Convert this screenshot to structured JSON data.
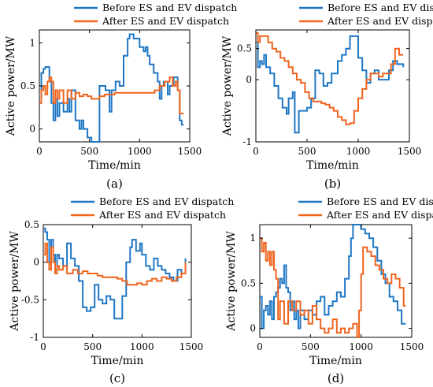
{
  "colors": {
    "before": "#1f77c4",
    "after": "#f0641e",
    "axis": "#000000"
  },
  "chart_data": [
    {
      "type": "line",
      "panel_label": "(a)",
      "xlabel": "Time/min",
      "ylabel": "Active power/MW",
      "xlim": [
        0,
        1500
      ],
      "ylim": [
        -0.15,
        1.15
      ],
      "xticks": [
        0,
        500,
        1000,
        1500
      ],
      "yticks": [
        0,
        0.5,
        1
      ],
      "grid": false,
      "legend_position": "top",
      "series": [
        {
          "name": "Before ES and EV dispatch",
          "color": "#1f77c4",
          "x": [
            0,
            20,
            40,
            60,
            80,
            100,
            120,
            140,
            160,
            180,
            200,
            240,
            280,
            300,
            320,
            360,
            400,
            420,
            440,
            480,
            520,
            560,
            600,
            660,
            700,
            720,
            760,
            800,
            840,
            880,
            900,
            920,
            940,
            960,
            1000,
            1040,
            1060,
            1080,
            1100,
            1140,
            1180,
            1200,
            1220,
            1240,
            1280,
            1300,
            1340,
            1380,
            1400,
            1420,
            1440
          ],
          "y": [
            0.3,
            0.65,
            0.7,
            0.72,
            0.72,
            0.55,
            0.3,
            0.1,
            0.35,
            0.15,
            0.3,
            0.2,
            0.35,
            0.2,
            0.45,
            0.1,
            0.0,
            0.1,
            0.0,
            -0.1,
            -0.15,
            -0.15,
            0.5,
            0.45,
            0.2,
            0.45,
            0.55,
            0.5,
            0.85,
            1.05,
            1.1,
            1.1,
            1.05,
            1.05,
            0.95,
            0.9,
            0.95,
            0.85,
            0.75,
            0.65,
            0.55,
            0.35,
            0.5,
            0.55,
            0.4,
            0.5,
            0.6,
            0.45,
            0.1,
            0.05,
            0.05
          ]
        },
        {
          "name": "After ES and EV dispatch",
          "color": "#f0641e",
          "x": [
            0,
            20,
            40,
            60,
            80,
            100,
            120,
            140,
            160,
            180,
            200,
            240,
            280,
            320,
            360,
            400,
            440,
            480,
            520,
            560,
            600,
            650,
            700,
            750,
            800,
            850,
            900,
            950,
            1000,
            1050,
            1100,
            1150,
            1200,
            1250,
            1300,
            1330,
            1360,
            1380,
            1400,
            1440
          ],
          "y": [
            0.3,
            0.45,
            0.5,
            0.4,
            0.55,
            0.6,
            0.55,
            0.3,
            0.45,
            0.35,
            0.45,
            0.3,
            0.45,
            0.35,
            0.42,
            0.38,
            0.4,
            0.38,
            0.35,
            0.35,
            0.38,
            0.4,
            0.4,
            0.42,
            0.42,
            0.42,
            0.42,
            0.42,
            0.42,
            0.42,
            0.42,
            0.45,
            0.5,
            0.55,
            0.6,
            0.5,
            0.55,
            0.45,
            0.18,
            0.18
          ]
        }
      ]
    },
    {
      "type": "line",
      "panel_label": "(b)",
      "xlabel": "Time/min",
      "ylabel": "Active power/MW",
      "xlim": [
        0,
        1500
      ],
      "ylim": [
        -1,
        0.8
      ],
      "xticks": [
        0,
        500,
        1000,
        1500
      ],
      "yticks": [
        -1,
        0,
        0.5
      ],
      "grid": false,
      "legend_position": "top",
      "series": [
        {
          "name": "Before ES and EV dispatch",
          "color": "#1f77c4",
          "x": [
            0,
            20,
            40,
            60,
            80,
            100,
            140,
            180,
            220,
            260,
            300,
            320,
            360,
            380,
            420,
            460,
            500,
            540,
            580,
            620,
            660,
            700,
            740,
            800,
            840,
            880,
            920,
            960,
            1000,
            1040,
            1080,
            1120,
            1160,
            1200,
            1240,
            1300,
            1340,
            1380,
            1440
          ],
          "y": [
            0.6,
            0.2,
            0.3,
            0.25,
            0.4,
            0.2,
            0.1,
            -0.1,
            -0.3,
            -0.45,
            -0.55,
            -0.3,
            -0.2,
            -0.85,
            -0.5,
            -0.5,
            -0.45,
            -0.3,
            0.15,
            0.1,
            -0.1,
            -0.05,
            0.1,
            0.3,
            0.4,
            0.5,
            0.7,
            0.7,
            0.35,
            0.15,
            -0.05,
            0.1,
            0.15,
            0.0,
            0.0,
            0.15,
            0.3,
            0.25,
            0.2
          ]
        },
        {
          "name": "After ES and EV dispatch",
          "color": "#f0641e",
          "x": [
            0,
            20,
            40,
            80,
            120,
            160,
            200,
            240,
            280,
            320,
            360,
            400,
            440,
            480,
            520,
            560,
            600,
            640,
            680,
            720,
            760,
            800,
            840,
            880,
            920,
            960,
            1000,
            1040,
            1080,
            1120,
            1160,
            1200,
            1240,
            1280,
            1320,
            1360,
            1400,
            1440
          ],
          "y": [
            0.75,
            0.6,
            0.7,
            0.7,
            0.6,
            0.5,
            0.45,
            0.35,
            0.3,
            0.2,
            0.1,
            0.0,
            -0.05,
            -0.2,
            -0.3,
            -0.35,
            -0.35,
            -0.38,
            -0.4,
            -0.45,
            -0.5,
            -0.6,
            -0.65,
            -0.72,
            -0.7,
            -0.5,
            -0.3,
            -0.15,
            0.0,
            0.1,
            0.1,
            0.05,
            0.1,
            0.1,
            0.25,
            0.5,
            0.4,
            0.4
          ]
        }
      ]
    },
    {
      "type": "line",
      "panel_label": "(c)",
      "xlabel": "Time/min",
      "ylabel": "Active power/MW",
      "xlim": [
        0,
        1500
      ],
      "ylim": [
        -1,
        0.5
      ],
      "xticks": [
        0,
        500,
        1000,
        1500
      ],
      "yticks": [
        -1,
        -0.5,
        0,
        0.5
      ],
      "grid": false,
      "legend_position": "top",
      "series": [
        {
          "name": "Before ES and EV dispatch",
          "color": "#1f77c4",
          "x": [
            0,
            20,
            40,
            60,
            80,
            100,
            120,
            140,
            160,
            200,
            240,
            280,
            320,
            360,
            400,
            440,
            480,
            520,
            560,
            600,
            640,
            680,
            720,
            760,
            800,
            840,
            880,
            900,
            940,
            980,
            1000,
            1040,
            1080,
            1120,
            1160,
            1200,
            1240,
            1280,
            1320,
            1360,
            1400,
            1440
          ],
          "y": [
            0.45,
            0.4,
            0.3,
            0.0,
            0.3,
            0.1,
            -0.1,
            0.1,
            0.05,
            -0.05,
            0.25,
            0.05,
            -0.05,
            -0.25,
            -0.6,
            -0.65,
            -0.6,
            -0.3,
            -0.5,
            -0.55,
            -0.45,
            -0.5,
            -0.75,
            -0.75,
            -0.45,
            0.0,
            0.2,
            0.3,
            0.15,
            0.25,
            0.1,
            -0.05,
            -0.1,
            0.05,
            -0.05,
            -0.1,
            -0.15,
            -0.2,
            -0.25,
            -0.1,
            -0.15,
            0.05
          ]
        },
        {
          "name": "After ES and EV dispatch",
          "color": "#f0641e",
          "x": [
            0,
            20,
            40,
            60,
            80,
            100,
            120,
            140,
            160,
            200,
            240,
            300,
            350,
            400,
            450,
            500,
            550,
            600,
            650,
            700,
            750,
            800,
            850,
            900,
            950,
            1000,
            1050,
            1100,
            1150,
            1200,
            1250,
            1300,
            1350,
            1400,
            1440
          ],
          "y": [
            0.1,
            0.25,
            0.0,
            -0.1,
            0.2,
            0.0,
            -0.15,
            -0.05,
            -0.1,
            -0.05,
            -0.15,
            -0.1,
            -0.15,
            -0.12,
            -0.15,
            -0.15,
            -0.18,
            -0.2,
            -0.2,
            -0.2,
            -0.22,
            -0.25,
            -0.3,
            -0.3,
            -0.28,
            -0.3,
            -0.25,
            -0.22,
            -0.25,
            -0.2,
            -0.22,
            -0.25,
            -0.2,
            -0.15,
            0.0
          ]
        }
      ]
    },
    {
      "type": "line",
      "panel_label": "(d)",
      "xlabel": "Time/min",
      "ylabel": "Active power/MW",
      "xlim": [
        0,
        1500
      ],
      "ylim": [
        -0.1,
        1.15
      ],
      "xticks": [
        0,
        500,
        1000,
        1500
      ],
      "yticks": [
        0,
        0.5,
        1
      ],
      "grid": false,
      "legend_position": "top",
      "series": [
        {
          "name": "Before ES and EV dispatch",
          "color": "#1f77c4",
          "x": [
            0,
            20,
            40,
            60,
            80,
            100,
            120,
            140,
            160,
            180,
            200,
            220,
            240,
            260,
            280,
            300,
            320,
            340,
            360,
            380,
            400,
            440,
            480,
            520,
            560,
            600,
            640,
            680,
            720,
            760,
            800,
            840,
            880,
            900,
            920,
            960,
            1000,
            1040,
            1080,
            1120,
            1160,
            1200,
            1240,
            1280,
            1320,
            1360,
            1400,
            1440
          ],
          "y": [
            0.35,
            0.0,
            0.2,
            0.25,
            0.15,
            0.3,
            0.1,
            0.35,
            0.4,
            0.45,
            0.55,
            0.5,
            0.7,
            0.45,
            0.4,
            0.2,
            0.3,
            0.1,
            0.2,
            0.0,
            0.2,
            0.1,
            0.2,
            0.15,
            0.3,
            0.35,
            0.15,
            0.25,
            0.3,
            0.4,
            0.35,
            0.55,
            0.8,
            1.0,
            1.15,
            1.15,
            1.1,
            1.05,
            1.0,
            0.9,
            0.75,
            0.6,
            0.5,
            0.35,
            0.3,
            0.2,
            0.05,
            0.05
          ]
        },
        {
          "name": "After ES and EV dispatch",
          "color": "#f0641e",
          "x": [
            0,
            20,
            40,
            60,
            80,
            100,
            120,
            140,
            160,
            180,
            200,
            240,
            280,
            320,
            360,
            400,
            440,
            480,
            520,
            560,
            600,
            640,
            680,
            720,
            760,
            800,
            840,
            880,
            920,
            960,
            980,
            1000,
            1020,
            1060,
            1100,
            1140,
            1180,
            1220,
            1260,
            1300,
            1340,
            1380,
            1420,
            1440
          ],
          "y": [
            1.0,
            0.85,
            0.95,
            0.75,
            0.85,
            0.7,
            0.85,
            0.65,
            0.55,
            0.1,
            0.3,
            0.05,
            0.3,
            0.2,
            0.3,
            0.15,
            0.2,
            0.05,
            0.25,
            0.1,
            0.0,
            -0.05,
            0.0,
            0.1,
            -0.05,
            0.0,
            -0.05,
            0.0,
            0.05,
            -0.1,
            0.2,
            0.6,
            0.9,
            0.85,
            0.8,
            0.7,
            0.65,
            0.55,
            0.5,
            0.6,
            0.55,
            0.45,
            0.25,
            0.25
          ]
        }
      ]
    }
  ]
}
